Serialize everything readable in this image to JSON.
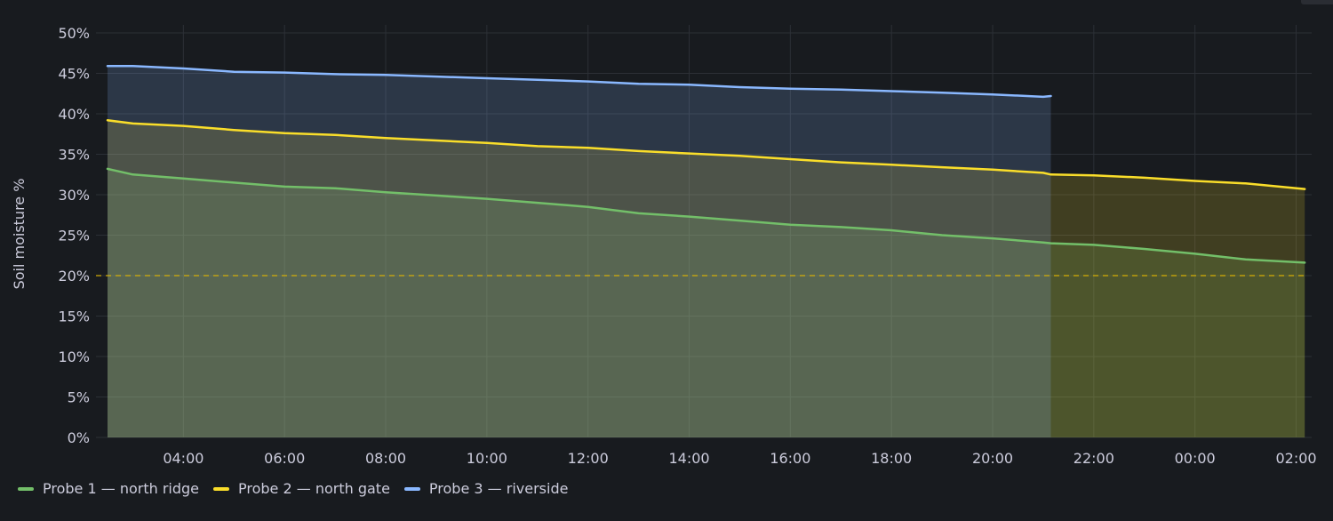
{
  "chart_data": {
    "type": "area",
    "ylabel": "Soil moisture %",
    "ylim": [
      0,
      50
    ],
    "y_ticks": [
      "0%",
      "5%",
      "10%",
      "15%",
      "20%",
      "25%",
      "30%",
      "35%",
      "40%",
      "45%",
      "50%"
    ],
    "x_ticks": [
      "04:00",
      "06:00",
      "08:00",
      "10:00",
      "12:00",
      "14:00",
      "16:00",
      "18:00",
      "20:00",
      "22:00",
      "00:00",
      "02:00"
    ],
    "x_range": [
      "02:30",
      "02:10"
    ],
    "x_unit": "hours",
    "threshold": {
      "value": 20,
      "style": "dashed",
      "color": "#e0b400"
    },
    "grid": true,
    "legend_position": "bottom-left",
    "series": [
      {
        "name": "Probe 1 — north ridge",
        "color": "#73bf69",
        "x": [
          2.5,
          3,
          4,
          5,
          6,
          7,
          8,
          9,
          10,
          11,
          12,
          13,
          14,
          15,
          16,
          17,
          18,
          19,
          20,
          21,
          21.15,
          22,
          23,
          24,
          25,
          26.17
        ],
        "values": [
          33.2,
          32.5,
          32.0,
          31.5,
          31.0,
          30.8,
          30.3,
          29.9,
          29.5,
          29.0,
          28.5,
          27.7,
          27.3,
          26.8,
          26.3,
          26.0,
          25.6,
          25.0,
          24.6,
          24.1,
          24.0,
          23.8,
          23.3,
          22.7,
          22.0,
          21.6
        ]
      },
      {
        "name": "Probe 2 — north gate",
        "color": "#fade2a",
        "x": [
          2.5,
          3,
          4,
          5,
          6,
          7,
          8,
          9,
          10,
          11,
          12,
          13,
          14,
          15,
          16,
          17,
          18,
          19,
          20,
          21,
          21.15,
          22,
          23,
          24,
          25,
          26.17
        ],
        "values": [
          39.2,
          38.8,
          38.5,
          38.0,
          37.6,
          37.4,
          37.0,
          36.7,
          36.4,
          36.0,
          35.8,
          35.4,
          35.1,
          34.8,
          34.4,
          34.0,
          33.7,
          33.4,
          33.1,
          32.7,
          32.5,
          32.4,
          32.1,
          31.7,
          31.4,
          30.7
        ]
      },
      {
        "name": "Probe 3 — riverside",
        "color": "#8ab8ff",
        "x": [
          2.5,
          3,
          4,
          5,
          6,
          7,
          8,
          9,
          10,
          11,
          12,
          13,
          14,
          15,
          16,
          17,
          18,
          19,
          20,
          21,
          21.15
        ],
        "values": [
          45.9,
          45.9,
          45.6,
          45.2,
          45.1,
          44.9,
          44.8,
          44.6,
          44.4,
          44.2,
          44.0,
          43.7,
          43.6,
          43.3,
          43.1,
          43.0,
          42.8,
          42.6,
          42.4,
          42.1,
          42.2
        ]
      }
    ]
  }
}
